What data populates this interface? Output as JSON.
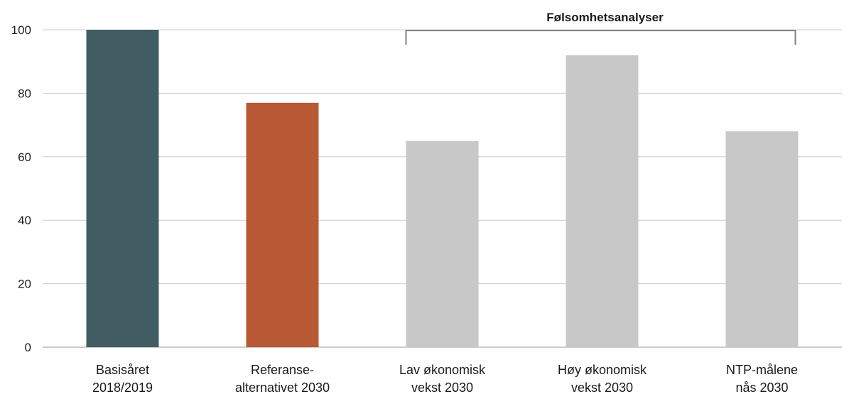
{
  "chart_data": {
    "type": "bar",
    "categories": [
      [
        "Basisåret",
        "2018/2019"
      ],
      [
        "Referanse-",
        "alternativet 2030"
      ],
      [
        "Lav økonomisk",
        "vekst 2030"
      ],
      [
        "Høy økonomisk",
        "vekst 2030"
      ],
      [
        "NTP-målene",
        "nås 2030"
      ]
    ],
    "values": [
      100,
      77,
      65,
      92,
      68
    ],
    "bar_colors": [
      "#415c63",
      "#b85834",
      "#c8c8c8",
      "#c8c8c8",
      "#c8c8c8"
    ],
    "ylim": [
      0,
      100
    ],
    "yticks": [
      0,
      20,
      40,
      60,
      80,
      100
    ],
    "grid": true,
    "title": "",
    "xlabel": "",
    "ylabel": "",
    "annotations": [
      {
        "type": "bracket",
        "label": "Følsomhetsanalyser",
        "from_category": 2,
        "to_category": 4
      }
    ]
  }
}
